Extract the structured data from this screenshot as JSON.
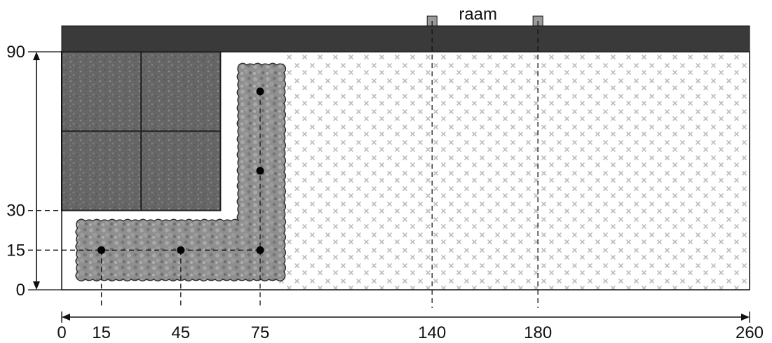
{
  "title": "raam",
  "colors": {
    "wall": "#3a3a3a",
    "tiles": "#6b6b6b",
    "tile_lines": "#1e1e1e",
    "hedge": "#8a8a8a",
    "hedge_outline": "#2a2a2a",
    "gravel_mark": "#bdbdbd",
    "window": "#9a9a9a",
    "line": "#111111"
  },
  "x_ticks": [
    {
      "value": 0,
      "label": "0"
    },
    {
      "value": 15,
      "label": "15"
    },
    {
      "value": 45,
      "label": "45"
    },
    {
      "value": 75,
      "label": "75"
    },
    {
      "value": 140,
      "label": "140"
    },
    {
      "value": 180,
      "label": "180"
    },
    {
      "value": 260,
      "label": "260"
    }
  ],
  "y_ticks": [
    {
      "value": 0,
      "label": "0"
    },
    {
      "value": 15,
      "label": "15"
    },
    {
      "value": 30,
      "label": "30"
    },
    {
      "value": 90,
      "label": "90"
    }
  ],
  "plan": {
    "width": 260,
    "depth": 90,
    "window_x": [
      140,
      180
    ],
    "tiles": {
      "x0": 0,
      "x1": 60,
      "y0": 30,
      "y1": 90,
      "grid": 2
    },
    "hedge_points": [
      {
        "x": 15,
        "y": 15
      },
      {
        "x": 45,
        "y": 15
      },
      {
        "x": 75,
        "y": 15
      },
      {
        "x": 75,
        "y": 45
      },
      {
        "x": 75,
        "y": 75
      }
    ]
  }
}
